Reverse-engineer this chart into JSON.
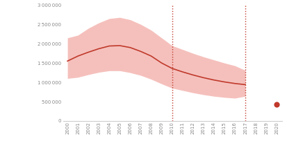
{
  "years": [
    2000,
    2001,
    2002,
    2003,
    2004,
    2005,
    2006,
    2007,
    2008,
    2009,
    2010,
    2011,
    2012,
    2013,
    2014,
    2015,
    2016,
    2017
  ],
  "central": [
    1550000,
    1680000,
    1780000,
    1870000,
    1940000,
    1950000,
    1900000,
    1800000,
    1680000,
    1500000,
    1360000,
    1270000,
    1190000,
    1120000,
    1060000,
    1010000,
    970000,
    940000
  ],
  "upper": [
    2150000,
    2220000,
    2400000,
    2540000,
    2650000,
    2680000,
    2620000,
    2500000,
    2350000,
    2150000,
    1950000,
    1850000,
    1750000,
    1660000,
    1580000,
    1500000,
    1430000,
    1310000
  ],
  "lower": [
    1100000,
    1130000,
    1200000,
    1260000,
    1300000,
    1300000,
    1250000,
    1180000,
    1080000,
    960000,
    850000,
    790000,
    730000,
    680000,
    640000,
    610000,
    590000,
    640000
  ],
  "dot_year": 2020,
  "dot_value": 420000,
  "vline_years": [
    2010,
    2017
  ],
  "ylim": [
    0,
    3000000
  ],
  "yticks": [
    0,
    500000,
    1000000,
    1500000,
    2000000,
    2500000,
    3000000
  ],
  "ytick_labels": [
    "0",
    "500 000",
    "1 000 000",
    "1 500 000",
    "2 000 000",
    "2 500 000",
    "3 000 000"
  ],
  "xtick_years": [
    2000,
    2001,
    2002,
    2003,
    2004,
    2005,
    2006,
    2007,
    2008,
    2009,
    2010,
    2011,
    2012,
    2013,
    2014,
    2015,
    2016,
    2017,
    2018,
    2019,
    2020
  ],
  "band_color": "#f5c0bc",
  "line_color": "#c0392b",
  "dot_color": "#c0392b",
  "vline_color": "#c0392b",
  "bg_color": "#ffffff"
}
